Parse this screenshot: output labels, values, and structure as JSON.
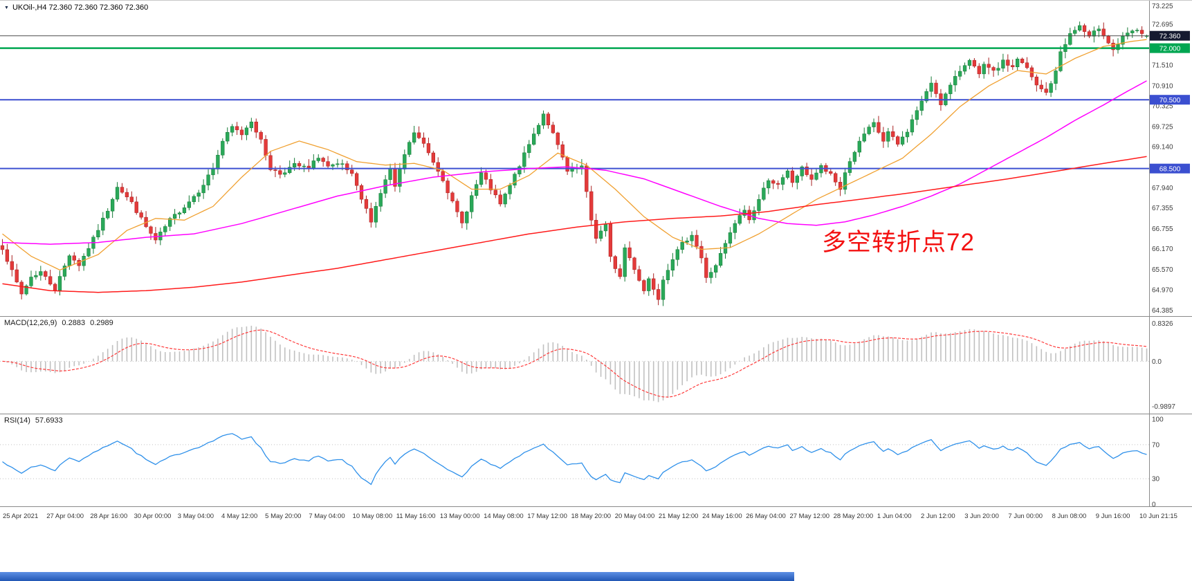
{
  "header": {
    "symbol_line": "UKOil-,H4 72.360 72.360 72.360 72.360"
  },
  "annotation": {
    "text": "多空转折点72",
    "color": "#f31111"
  },
  "indicators": {
    "macd": {
      "name": "MACD(12,26,9)",
      "main": "0.2883",
      "signal": "0.2989"
    },
    "rsi": {
      "name": "RSI(14)",
      "value": "57.6933"
    }
  },
  "price_axis": {
    "gray_labels": [
      73.225,
      72.695,
      71.51,
      70.91,
      70.325,
      69.725,
      69.14,
      67.94,
      67.355,
      66.755,
      66.17,
      65.57,
      64.97,
      64.385
    ],
    "badges": [
      {
        "text": "72.360",
        "price": 72.36,
        "bg": "#151a30"
      },
      {
        "text": "72.000",
        "price": 72.0,
        "bg": "#00a651"
      },
      {
        "text": "70.500",
        "price": 70.5,
        "bg": "#3b4fd0"
      },
      {
        "text": "68.500",
        "price": 68.5,
        "bg": "#3b4fd0"
      }
    ]
  },
  "hlines": [
    {
      "price": 72.36,
      "color": "#4a4a4a",
      "width": 1
    },
    {
      "price": 72.0,
      "color": "#00a651",
      "width": 2.5
    },
    {
      "price": 70.5,
      "color": "#3b4fd0",
      "width": 2
    },
    {
      "price": 68.5,
      "color": "#3b4fd0",
      "width": 2
    }
  ],
  "time_axis": {
    "labels": [
      "25 Apr 2021",
      "27 Apr 04:00",
      "28 Apr 16:00",
      "30 Apr 00:00",
      "3 May 04:00",
      "4 May 12:00",
      "5 May 20:00",
      "7 May 04:00",
      "10 May 08:00",
      "11 May 16:00",
      "13 May 00:00",
      "14 May 08:00",
      "17 May 12:00",
      "18 May 20:00",
      "20 May 04:00",
      "21 May 12:00",
      "24 May 16:00",
      "26 May 04:00",
      "27 May 12:00",
      "28 May 20:00",
      "1 Jun 04:00",
      "2 Jun 12:00",
      "3 Jun 20:00",
      "7 Jun 00:00",
      "8 Jun 08:00",
      "9 Jun 16:00",
      "10 Jun 21:15"
    ]
  },
  "chart_data": {
    "type": "candlestick",
    "symbol": "UKOil-",
    "timeframe": "H4",
    "last_price": 72.36,
    "price_range": {
      "min": 64.25,
      "max": 73.36
    },
    "candle_count": 240,
    "up_color": "#2aa859",
    "up_stroke": "#147a35",
    "down_color": "#e33a3a",
    "down_stroke": "#a82020",
    "close_keypoints": [
      [
        0,
        66.2
      ],
      [
        2,
        65.5
      ],
      [
        4,
        64.85
      ],
      [
        6,
        65.35
      ],
      [
        8,
        65.5
      ],
      [
        11,
        65.0
      ],
      [
        14,
        66.0
      ],
      [
        16,
        65.7
      ],
      [
        19,
        66.45
      ],
      [
        22,
        67.3
      ],
      [
        24,
        68.0
      ],
      [
        27,
        67.5
      ],
      [
        30,
        66.8
      ],
      [
        32,
        66.4
      ],
      [
        35,
        67.0
      ],
      [
        38,
        67.4
      ],
      [
        41,
        67.85
      ],
      [
        44,
        68.5
      ],
      [
        46,
        69.3
      ],
      [
        48,
        69.7
      ],
      [
        50,
        69.5
      ],
      [
        52,
        69.9
      ],
      [
        54,
        69.3
      ],
      [
        56,
        68.5
      ],
      [
        58,
        68.35
      ],
      [
        61,
        68.6
      ],
      [
        64,
        68.5
      ],
      [
        66,
        68.85
      ],
      [
        68,
        68.55
      ],
      [
        71,
        68.6
      ],
      [
        73,
        68.3
      ],
      [
        75,
        67.6
      ],
      [
        77,
        67.0
      ],
      [
        79,
        67.8
      ],
      [
        81,
        68.5
      ],
      [
        82,
        67.95
      ],
      [
        84,
        68.9
      ],
      [
        86,
        69.55
      ],
      [
        88,
        69.2
      ],
      [
        90,
        68.7
      ],
      [
        92,
        68.2
      ],
      [
        94,
        67.5
      ],
      [
        96,
        66.9
      ],
      [
        98,
        67.7
      ],
      [
        100,
        68.35
      ],
      [
        102,
        67.9
      ],
      [
        104,
        67.45
      ],
      [
        106,
        68.0
      ],
      [
        108,
        68.6
      ],
      [
        110,
        69.2
      ],
      [
        112,
        69.8
      ],
      [
        113,
        70.1
      ],
      [
        115,
        69.5
      ],
      [
        117,
        68.8
      ],
      [
        118,
        68.4
      ],
      [
        121,
        68.55
      ],
      [
        123,
        67.0
      ],
      [
        124,
        66.5
      ],
      [
        126,
        66.85
      ],
      [
        127,
        65.9
      ],
      [
        129,
        65.35
      ],
      [
        130,
        66.2
      ],
      [
        132,
        65.6
      ],
      [
        134,
        64.95
      ],
      [
        135,
        65.3
      ],
      [
        137,
        64.75
      ],
      [
        138,
        65.3
      ],
      [
        140,
        65.9
      ],
      [
        142,
        66.3
      ],
      [
        144,
        66.6
      ],
      [
        146,
        65.9
      ],
      [
        147,
        65.3
      ],
      [
        149,
        65.7
      ],
      [
        151,
        66.3
      ],
      [
        153,
        66.9
      ],
      [
        155,
        67.3
      ],
      [
        156,
        67.0
      ],
      [
        158,
        67.6
      ],
      [
        160,
        68.2
      ],
      [
        162,
        68.0
      ],
      [
        164,
        68.4
      ],
      [
        165,
        68.1
      ],
      [
        167,
        68.5
      ],
      [
        169,
        68.2
      ],
      [
        171,
        68.55
      ],
      [
        173,
        68.3
      ],
      [
        175,
        67.9
      ],
      [
        176,
        68.4
      ],
      [
        178,
        69.0
      ],
      [
        180,
        69.5
      ],
      [
        182,
        69.8
      ],
      [
        184,
        69.3
      ],
      [
        185,
        69.55
      ],
      [
        187,
        69.2
      ],
      [
        189,
        69.6
      ],
      [
        191,
        70.2
      ],
      [
        193,
        70.7
      ],
      [
        194,
        71.0
      ],
      [
        196,
        70.4
      ],
      [
        198,
        70.9
      ],
      [
        200,
        71.35
      ],
      [
        202,
        71.7
      ],
      [
        204,
        71.2
      ],
      [
        205,
        71.5
      ],
      [
        207,
        71.3
      ],
      [
        209,
        71.6
      ],
      [
        211,
        71.45
      ],
      [
        212,
        71.7
      ],
      [
        214,
        71.4
      ],
      [
        216,
        70.9
      ],
      [
        218,
        70.7
      ],
      [
        220,
        71.3
      ],
      [
        221,
        71.9
      ],
      [
        223,
        72.4
      ],
      [
        225,
        72.65
      ],
      [
        227,
        72.3
      ],
      [
        229,
        72.6
      ],
      [
        230,
        72.4
      ],
      [
        232,
        71.95
      ],
      [
        234,
        72.3
      ],
      [
        236,
        72.5
      ],
      [
        238,
        72.45
      ],
      [
        239,
        72.36
      ]
    ],
    "ma_lines": [
      {
        "name": "ma-fast",
        "color": "#f0a030",
        "width": 1.3,
        "keypoints": [
          [
            0,
            66.6
          ],
          [
            6,
            65.95
          ],
          [
            12,
            65.55
          ],
          [
            20,
            66.0
          ],
          [
            26,
            66.7
          ],
          [
            32,
            67.05
          ],
          [
            38,
            67.0
          ],
          [
            44,
            67.4
          ],
          [
            50,
            68.25
          ],
          [
            56,
            69.0
          ],
          [
            62,
            69.3
          ],
          [
            68,
            69.05
          ],
          [
            74,
            68.7
          ],
          [
            80,
            68.6
          ],
          [
            86,
            68.65
          ],
          [
            92,
            68.45
          ],
          [
            98,
            67.9
          ],
          [
            104,
            67.9
          ],
          [
            110,
            68.3
          ],
          [
            116,
            68.95
          ],
          [
            122,
            68.6
          ],
          [
            128,
            67.9
          ],
          [
            134,
            67.1
          ],
          [
            140,
            66.5
          ],
          [
            146,
            66.15
          ],
          [
            152,
            66.2
          ],
          [
            158,
            66.6
          ],
          [
            164,
            67.1
          ],
          [
            170,
            67.6
          ],
          [
            176,
            68.0
          ],
          [
            182,
            68.4
          ],
          [
            188,
            68.8
          ],
          [
            194,
            69.5
          ],
          [
            200,
            70.3
          ],
          [
            206,
            70.9
          ],
          [
            212,
            71.35
          ],
          [
            218,
            71.25
          ],
          [
            224,
            71.7
          ],
          [
            230,
            72.05
          ],
          [
            236,
            72.2
          ],
          [
            239,
            72.25
          ]
        ]
      },
      {
        "name": "ma-mid",
        "color": "#ff00ff",
        "width": 1.5,
        "keypoints": [
          [
            0,
            66.35
          ],
          [
            10,
            66.3
          ],
          [
            20,
            66.35
          ],
          [
            30,
            66.5
          ],
          [
            40,
            66.6
          ],
          [
            50,
            66.9
          ],
          [
            60,
            67.3
          ],
          [
            70,
            67.7
          ],
          [
            80,
            68.0
          ],
          [
            90,
            68.25
          ],
          [
            100,
            68.4
          ],
          [
            110,
            68.5
          ],
          [
            118,
            68.55
          ],
          [
            126,
            68.45
          ],
          [
            134,
            68.2
          ],
          [
            142,
            67.8
          ],
          [
            150,
            67.4
          ],
          [
            158,
            67.05
          ],
          [
            164,
            66.9
          ],
          [
            170,
            66.85
          ],
          [
            176,
            66.95
          ],
          [
            182,
            67.15
          ],
          [
            188,
            67.4
          ],
          [
            194,
            67.7
          ],
          [
            200,
            68.05
          ],
          [
            206,
            68.5
          ],
          [
            212,
            68.95
          ],
          [
            218,
            69.4
          ],
          [
            224,
            69.9
          ],
          [
            230,
            70.35
          ],
          [
            235,
            70.75
          ],
          [
            239,
            71.05
          ]
        ]
      },
      {
        "name": "ma-slow",
        "color": "#ff1a1a",
        "width": 1.5,
        "keypoints": [
          [
            0,
            65.15
          ],
          [
            10,
            64.95
          ],
          [
            20,
            64.9
          ],
          [
            30,
            64.95
          ],
          [
            40,
            65.05
          ],
          [
            50,
            65.2
          ],
          [
            60,
            65.4
          ],
          [
            70,
            65.6
          ],
          [
            80,
            65.85
          ],
          [
            90,
            66.1
          ],
          [
            100,
            66.35
          ],
          [
            110,
            66.6
          ],
          [
            120,
            66.8
          ],
          [
            130,
            66.95
          ],
          [
            140,
            67.05
          ],
          [
            150,
            67.12
          ],
          [
            160,
            67.25
          ],
          [
            170,
            67.45
          ],
          [
            180,
            67.62
          ],
          [
            190,
            67.8
          ],
          [
            200,
            68.0
          ],
          [
            210,
            68.2
          ],
          [
            220,
            68.42
          ],
          [
            230,
            68.65
          ],
          [
            239,
            68.85
          ]
        ]
      }
    ],
    "macd": {
      "params": [
        12,
        26,
        9
      ],
      "current": [
        0.2883,
        0.2989
      ],
      "axis": [
        0.8326,
        0.0,
        -0.9897
      ],
      "range": {
        "min": -1.12,
        "max": 0.95
      },
      "hist_color": "#c0c0c0",
      "signal_color": "#ff3b3b"
    },
    "rsi": {
      "period": 14,
      "current": 57.6933,
      "axis": [
        100,
        70,
        30,
        0
      ],
      "levels": [
        70,
        30
      ],
      "color": "#2e90ea"
    }
  }
}
